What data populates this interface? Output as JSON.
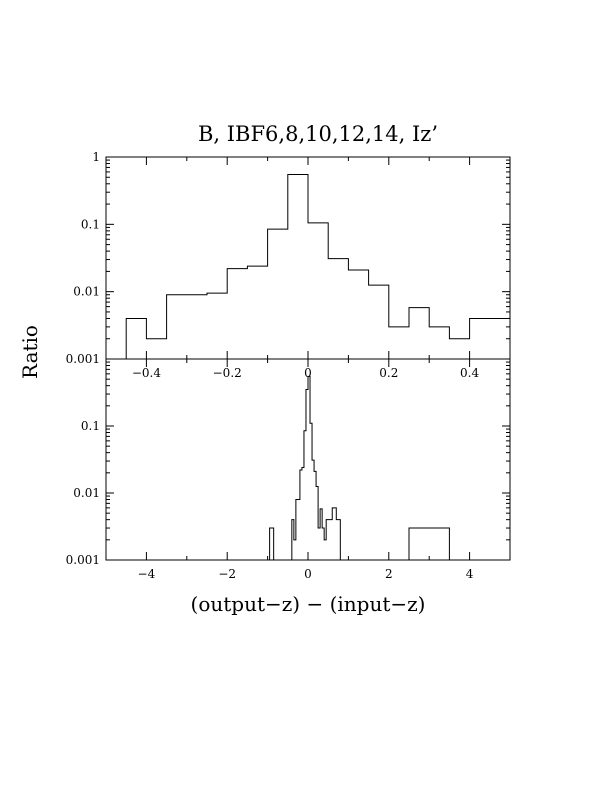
{
  "title": "B,  IBF6,8,10,12,14,  Iz’",
  "ylabel": "Ratio",
  "xlabel": "(output−z)  −  (input−z)",
  "chart_data": [
    {
      "type": "step",
      "ylog": true,
      "xlim": [
        -0.5,
        0.5
      ],
      "ylim": [
        0.001,
        1
      ],
      "xticks": [
        -0.4,
        -0.2,
        0,
        0.2,
        0.4
      ],
      "xtick_labels": [
        "−0.4",
        "−0.2",
        "0",
        "0.2",
        "0.4"
      ],
      "yticks": [
        0.001,
        0.01,
        0.1,
        1
      ],
      "ytick_labels": [
        "0.001",
        "0.01",
        "0.1",
        "1"
      ],
      "bin_width": 0.05,
      "bins": [
        {
          "x0": -0.5,
          "x1": -0.45,
          "y": 0
        },
        {
          "x0": -0.45,
          "x1": -0.4,
          "y": 0.004
        },
        {
          "x0": -0.4,
          "x1": -0.35,
          "y": 0.002
        },
        {
          "x0": -0.35,
          "x1": -0.3,
          "y": 0.009
        },
        {
          "x0": -0.3,
          "x1": -0.25,
          "y": 0.009
        },
        {
          "x0": -0.25,
          "x1": -0.2,
          "y": 0.0095
        },
        {
          "x0": -0.2,
          "x1": -0.15,
          "y": 0.022
        },
        {
          "x0": -0.15,
          "x1": -0.1,
          "y": 0.024
        },
        {
          "x0": -0.1,
          "x1": -0.05,
          "y": 0.085
        },
        {
          "x0": -0.05,
          "x1": 0.0,
          "y": 0.55
        },
        {
          "x0": 0.0,
          "x1": 0.05,
          "y": 0.105
        },
        {
          "x0": 0.05,
          "x1": 0.1,
          "y": 0.031
        },
        {
          "x0": 0.1,
          "x1": 0.15,
          "y": 0.021
        },
        {
          "x0": 0.15,
          "x1": 0.2,
          "y": 0.0125
        },
        {
          "x0": 0.2,
          "x1": 0.25,
          "y": 0.003
        },
        {
          "x0": 0.25,
          "x1": 0.3,
          "y": 0.0058
        },
        {
          "x0": 0.3,
          "x1": 0.35,
          "y": 0.003
        },
        {
          "x0": 0.35,
          "x1": 0.4,
          "y": 0.002
        },
        {
          "x0": 0.4,
          "x1": 0.45,
          "y": 0.004
        },
        {
          "x0": 0.45,
          "x1": 0.5,
          "y": 0.004
        }
      ]
    },
    {
      "type": "step",
      "ylog": true,
      "xlim": [
        -5,
        5
      ],
      "ylim": [
        0.001,
        0.5
      ],
      "xticks": [
        -4,
        -2,
        0,
        2,
        4
      ],
      "xtick_labels": [
        "−4",
        "−2",
        "0",
        "2",
        "4"
      ],
      "yticks": [
        0.001,
        0.01,
        0.1
      ],
      "ytick_labels": [
        "0.001",
        "0.01",
        "0.1"
      ],
      "bin_width": 0.05,
      "points": [
        [
          -1.0,
          0
        ],
        [
          -0.95,
          0.003
        ],
        [
          -0.9,
          0.003
        ],
        [
          -0.85,
          0
        ],
        [
          -0.4,
          0
        ],
        [
          -0.4,
          0.004
        ],
        [
          -0.35,
          0.002
        ],
        [
          -0.3,
          0.008
        ],
        [
          -0.25,
          0.008
        ],
        [
          -0.2,
          0.022
        ],
        [
          -0.15,
          0.024
        ],
        [
          -0.1,
          0.085
        ],
        [
          -0.05,
          0.35
        ],
        [
          0.0,
          0.55
        ],
        [
          0.05,
          0.11
        ],
        [
          0.1,
          0.031
        ],
        [
          0.15,
          0.021
        ],
        [
          0.2,
          0.0125
        ],
        [
          0.25,
          0.003
        ],
        [
          0.3,
          0.0058
        ],
        [
          0.35,
          0.003
        ],
        [
          0.4,
          0.002
        ],
        [
          0.45,
          0.004
        ],
        [
          0.5,
          0.004
        ],
        [
          0.6,
          0.006
        ],
        [
          0.7,
          0.004
        ],
        [
          0.75,
          0.004
        ],
        [
          0.8,
          0
        ]
      ],
      "wide_bins": [
        {
          "x0": 2.5,
          "x1": 3.5,
          "y": 0.003
        }
      ]
    }
  ]
}
